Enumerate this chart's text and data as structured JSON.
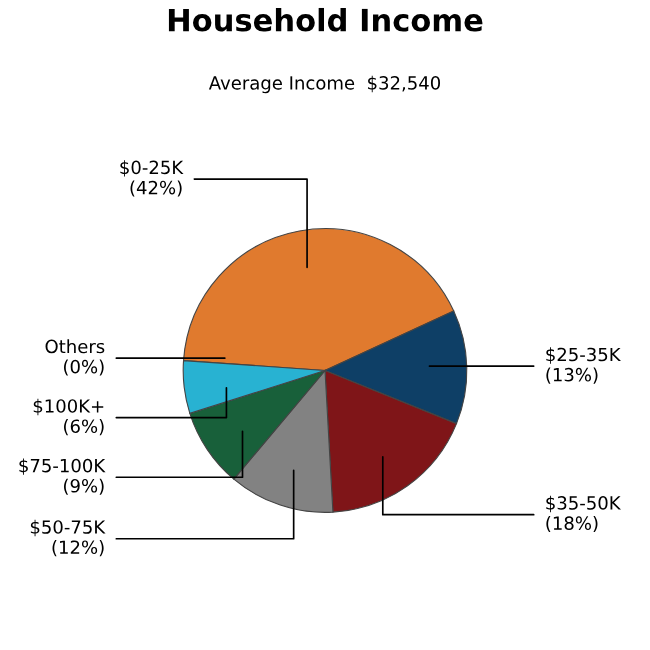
{
  "chart_data": {
    "type": "pie",
    "title": "Household Income",
    "subtitle": "Average Income  $32,540",
    "categories": [
      "$0-25K",
      "$25-35K",
      "$35-50K",
      "$50-75K",
      "$75-100K",
      "$100K+",
      "Others"
    ],
    "values": [
      42,
      13,
      18,
      12,
      9,
      6,
      0
    ],
    "colors": [
      "#e07a2e",
      "#0e3f66",
      "#7f1518",
      "#828282",
      "#18603a",
      "#28b2d2",
      "#9a9a9a"
    ],
    "value_labels": [
      "(42%)",
      "(13%)",
      "(18%)",
      "(12%)",
      "(9%)",
      "(6%)",
      "(0%)"
    ],
    "legend": false
  }
}
